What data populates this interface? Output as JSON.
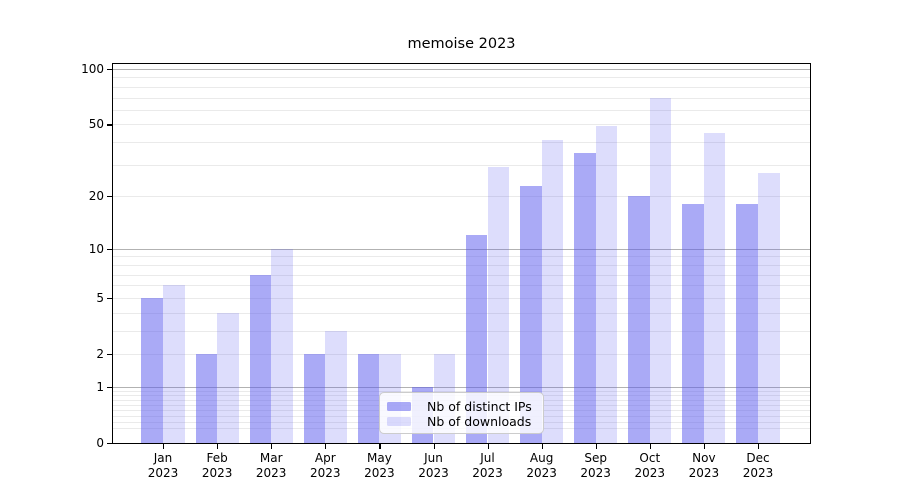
{
  "chart_data": {
    "type": "bar",
    "title": "memoise 2023",
    "categories": [
      "Jan",
      "Feb",
      "Mar",
      "Apr",
      "May",
      "Jun",
      "Jul",
      "Aug",
      "Sep",
      "Oct",
      "Nov",
      "Dec"
    ],
    "year": "2023",
    "series": [
      {
        "name": "Nb of distinct IPs",
        "color": "rgba(85,85,238,0.5)",
        "values": [
          5,
          2,
          7,
          2,
          2,
          1,
          12,
          23,
          35,
          20,
          18,
          18
        ]
      },
      {
        "name": "Nb of downloads",
        "color": "rgba(85,85,238,0.2)",
        "values": [
          6,
          4,
          10,
          3,
          2,
          2,
          29,
          41,
          49,
          70,
          45,
          27
        ]
      }
    ],
    "y_ticks": [
      0,
      1,
      2,
      5,
      10,
      20,
      50,
      100
    ],
    "y_scale": "log1p",
    "ylim": [
      0,
      110
    ],
    "grid": {
      "major_values": [
        1,
        10,
        100
      ],
      "major_color": "#b2b2b2",
      "minor_color": "#eaeaea"
    },
    "legend_position": "lower center"
  }
}
